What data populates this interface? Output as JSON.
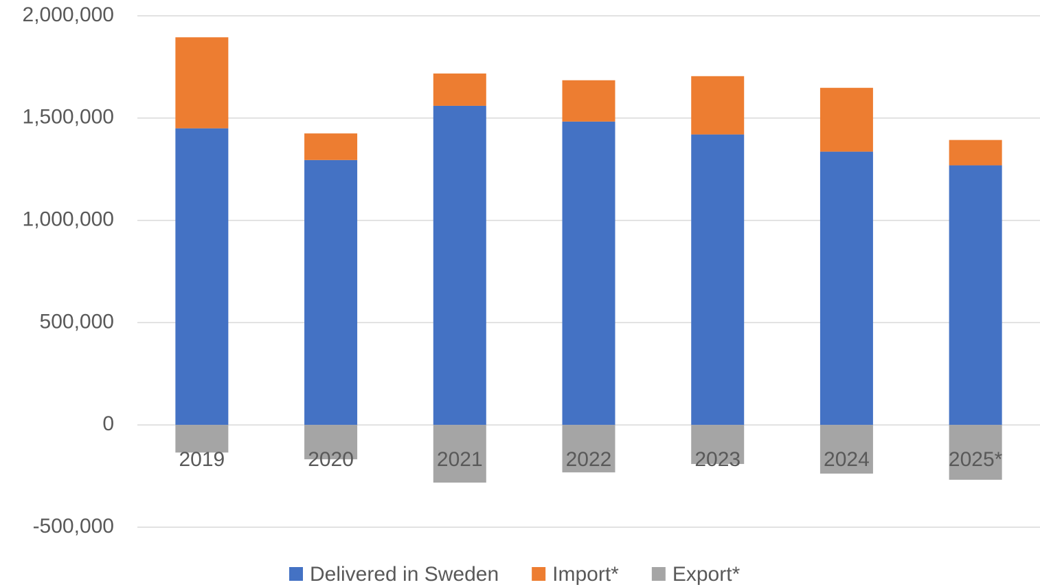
{
  "chart_data": {
    "type": "bar",
    "stacked": true,
    "categories": [
      "2019",
      "2020",
      "2021",
      "2022",
      "2023",
      "2024",
      "2025*"
    ],
    "series": [
      {
        "name": "Delivered in Sweden",
        "color": "#4472c4",
        "values": [
          1450000,
          1295000,
          1560000,
          1483000,
          1420000,
          1336000,
          1269000
        ]
      },
      {
        "name": "Import*",
        "color": "#ed7d31",
        "values": [
          445000,
          130000,
          158000,
          202000,
          285000,
          312000,
          124000
        ]
      },
      {
        "name": "Export*",
        "color": "#a5a5a5",
        "values": [
          -135000,
          -168000,
          -282000,
          -232000,
          -191000,
          -238000,
          -268000
        ]
      }
    ],
    "ylim": [
      -500000,
      2000000
    ],
    "yticks": [
      {
        "value": -500000,
        "label": "-500,000"
      },
      0,
      {
        "value": 500000,
        "label": "500,000"
      },
      {
        "value": 1000000,
        "label": "1,000,000"
      },
      {
        "value": 1500000,
        "label": "1,500,000"
      },
      {
        "value": 2000000,
        "label": "2,000,000"
      }
    ],
    "grid": true,
    "legend": "bottom"
  }
}
